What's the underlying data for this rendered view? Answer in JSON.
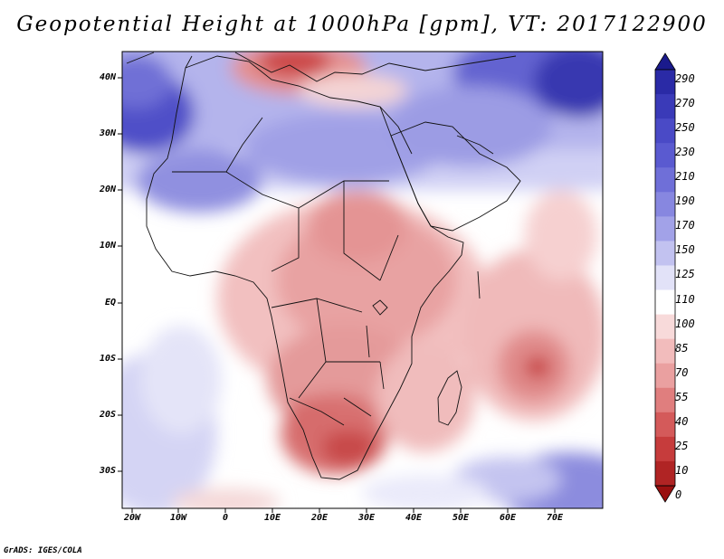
{
  "title": "Geopotential Height at 1000hPa [gpm], VT: 2017122900",
  "credit": "GrADS: IGES/COLA",
  "map": {
    "lat_labels": [
      "40N",
      "30N",
      "20N",
      "10N",
      "EQ",
      "10S",
      "20S",
      "30S"
    ],
    "lon_labels": [
      "20W",
      "10W",
      "0",
      "10E",
      "20E",
      "30E",
      "40E",
      "50E",
      "60E",
      "70E"
    ]
  },
  "colorbar": {
    "labels": [
      "290",
      "270",
      "250",
      "230",
      "210",
      "190",
      "170",
      "150",
      "125",
      "110",
      "100",
      "85",
      "70",
      "55",
      "40",
      "25",
      "10",
      "0"
    ],
    "colors": [
      "#1a1a8c",
      "#2a2aa6",
      "#3a3ab8",
      "#4a4ac6",
      "#5a5ad0",
      "#6f6fd8",
      "#8787e0",
      "#a2a2e8",
      "#c2c2f0",
      "#e2e2f8",
      "#ffffff",
      "#f8dada",
      "#f2bcbc",
      "#eaa0a0",
      "#e07e7e",
      "#d45a5a",
      "#c63c3c",
      "#b02424",
      "#9a1010"
    ]
  }
}
